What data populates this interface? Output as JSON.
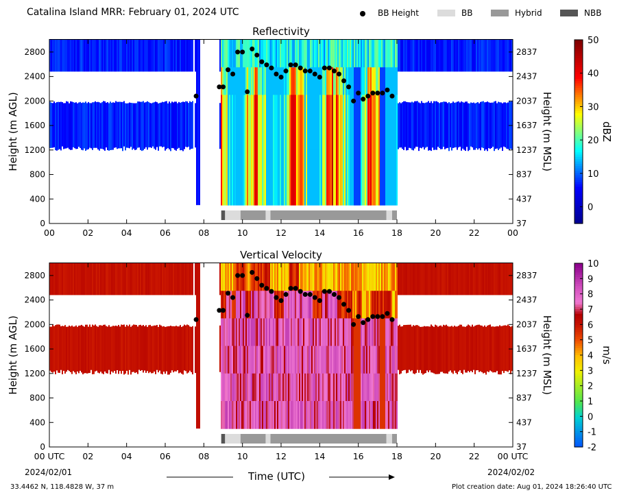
{
  "header": {
    "title": "Catalina Island MRR:  February 01, 2024 UTC",
    "legend": [
      {
        "label": "BB Height",
        "symbol": "dot",
        "color": "#000000"
      },
      {
        "label": "BB",
        "symbol": "swatch",
        "color": "#dcdcdc"
      },
      {
        "label": "Hybrid",
        "symbol": "swatch",
        "color": "#999999"
      },
      {
        "label": "NBB",
        "symbol": "swatch",
        "color": "#555555"
      }
    ]
  },
  "footer": {
    "location": "33.4462 N, 118.4828 W, 37 m",
    "created": "Plot creation date: Aug 01, 2024 18:26:40 UTC",
    "xlabel": "Time (UTC)",
    "start_date": "2024/02/01",
    "end_date": "2024/02/02"
  },
  "chart_data": [
    {
      "type": "heatmap",
      "title": "Reflectivity",
      "ylabel": "Height (m AGL)",
      "ylabel_right": "Height (m MSL)",
      "colorbar_label": "dBZ",
      "colorbar_ticks": [
        "50",
        "40",
        "30",
        "20",
        "10",
        "0"
      ],
      "colorbar_range": [
        -5,
        50
      ],
      "x_ticks": [
        "00",
        "02",
        "04",
        "06",
        "08",
        "10",
        "12",
        "14",
        "16",
        "18",
        "20",
        "22",
        "00"
      ],
      "xlim": [
        0,
        24
      ],
      "y_ticks_left": [
        "2800",
        "2400",
        "2000",
        "1600",
        "1200",
        "800",
        "400",
        "0"
      ],
      "y_ticks_right": [
        "2837",
        "2437",
        "2037",
        "1637",
        "1237",
        "837",
        "437",
        "37"
      ],
      "ylim": [
        0,
        3000
      ]
    },
    {
      "type": "heatmap",
      "title": "Vertical Velocity",
      "ylabel": "Height (m AGL)",
      "ylabel_right": "Height (m MSL)",
      "colorbar_label": "m/s",
      "colorbar_ticks": [
        "10",
        "9",
        "8",
        "7",
        "6",
        "5",
        "4",
        "3",
        "2",
        "1",
        "0",
        "-1",
        "-2"
      ],
      "colorbar_range": [
        -2,
        10
      ],
      "x_ticks": [
        "00 UTC",
        "02",
        "04",
        "06",
        "08",
        "10",
        "12",
        "14",
        "16",
        "18",
        "20",
        "22",
        "00 UTC"
      ],
      "xlim": [
        0,
        24
      ],
      "y_ticks_left": [
        "2800",
        "2400",
        "2000",
        "1600",
        "1200",
        "800",
        "400",
        "0"
      ],
      "y_ticks_right": [
        "2837",
        "2437",
        "2037",
        "1637",
        "1237",
        "837",
        "437",
        "37"
      ],
      "ylim": [
        0,
        3000
      ]
    }
  ],
  "bb_height": {
    "series_name": "BB Height",
    "points": [
      {
        "t": 7.6,
        "h": 2080
      },
      {
        "t": 8.8,
        "h": 2230
      },
      {
        "t": 9.0,
        "h": 2230
      },
      {
        "t": 9.25,
        "h": 2510
      },
      {
        "t": 9.5,
        "h": 2440
      },
      {
        "t": 9.75,
        "h": 2800
      },
      {
        "t": 10.0,
        "h": 2800
      },
      {
        "t": 10.25,
        "h": 2150
      },
      {
        "t": 10.5,
        "h": 2850
      },
      {
        "t": 10.75,
        "h": 2750
      },
      {
        "t": 11.0,
        "h": 2640
      },
      {
        "t": 11.25,
        "h": 2590
      },
      {
        "t": 11.5,
        "h": 2540
      },
      {
        "t": 11.75,
        "h": 2440
      },
      {
        "t": 12.0,
        "h": 2390
      },
      {
        "t": 12.25,
        "h": 2490
      },
      {
        "t": 12.5,
        "h": 2590
      },
      {
        "t": 12.75,
        "h": 2590
      },
      {
        "t": 13.0,
        "h": 2540
      },
      {
        "t": 13.25,
        "h": 2490
      },
      {
        "t": 13.5,
        "h": 2490
      },
      {
        "t": 13.75,
        "h": 2440
      },
      {
        "t": 14.0,
        "h": 2390
      },
      {
        "t": 14.25,
        "h": 2540
      },
      {
        "t": 14.5,
        "h": 2540
      },
      {
        "t": 14.75,
        "h": 2490
      },
      {
        "t": 15.0,
        "h": 2440
      },
      {
        "t": 15.25,
        "h": 2330
      },
      {
        "t": 15.5,
        "h": 2230
      },
      {
        "t": 15.75,
        "h": 2000
      },
      {
        "t": 16.0,
        "h": 2130
      },
      {
        "t": 16.25,
        "h": 2030
      },
      {
        "t": 16.5,
        "h": 2080
      },
      {
        "t": 16.75,
        "h": 2130
      },
      {
        "t": 17.0,
        "h": 2130
      },
      {
        "t": 17.25,
        "h": 2130
      },
      {
        "t": 17.5,
        "h": 2180
      },
      {
        "t": 17.75,
        "h": 2080
      }
    ]
  },
  "bb_type": [
    {
      "start": 8.9,
      "end": 9.1,
      "type": "NBB"
    },
    {
      "start": 9.1,
      "end": 9.9,
      "type": "BB"
    },
    {
      "start": 9.9,
      "end": 11.2,
      "type": "Hybrid"
    },
    {
      "start": 11.2,
      "end": 11.45,
      "type": "BB"
    },
    {
      "start": 11.45,
      "end": 17.45,
      "type": "Hybrid"
    },
    {
      "start": 17.45,
      "end": 17.75,
      "type": "BB"
    },
    {
      "start": 17.75,
      "end": 18.0,
      "type": "Hybrid"
    }
  ]
}
